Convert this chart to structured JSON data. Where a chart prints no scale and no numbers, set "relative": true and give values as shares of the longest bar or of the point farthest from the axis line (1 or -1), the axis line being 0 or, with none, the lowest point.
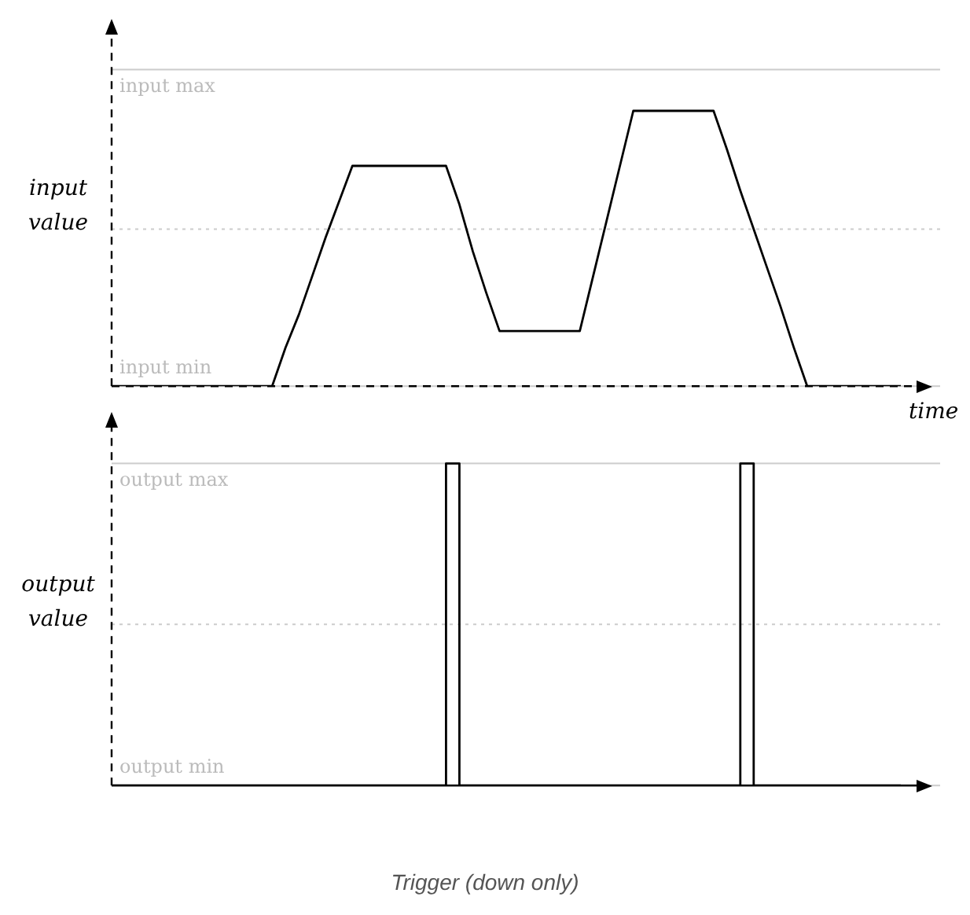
{
  "chart_data": [
    {
      "type": "line",
      "ylabel": "input value",
      "xlabel": "time",
      "relative": true,
      "categories": [
        null,
        null,
        null,
        null,
        null,
        null,
        null,
        null,
        null,
        null,
        null,
        null,
        null,
        null,
        null,
        null,
        null,
        null,
        null,
        null,
        null,
        null,
        null,
        null,
        null,
        null,
        null,
        null,
        null,
        null,
        null,
        null,
        null,
        null,
        null,
        null,
        null,
        null,
        null,
        null,
        null,
        null,
        null,
        null,
        null,
        null,
        null,
        null,
        null,
        null,
        null,
        null,
        null,
        null,
        null,
        null,
        null,
        null,
        null,
        null
      ],
      "series": [
        {
          "color": "#000000",
          "values": [
            0,
            0,
            0,
            0,
            0,
            0,
            0,
            0,
            0,
            0,
            0,
            0,
            0,
            0.14,
            0.26,
            0.4,
            0.54,
            0.67,
            0.8,
            0.8,
            0.8,
            0.8,
            0.8,
            0.8,
            0.8,
            0.8,
            0.66,
            0.49,
            0.34,
            0.2,
            0.2,
            0.2,
            0.2,
            0.2,
            0.2,
            0.2,
            0.4,
            0.6,
            0.8,
            1,
            1,
            1,
            1,
            1,
            1,
            1,
            0.86,
            0.71,
            0.57,
            0.43,
            0.29,
            0.14,
            0,
            0,
            0,
            0,
            0,
            0,
            0,
            0
          ]
        }
      ],
      "ref_lines": [
        {
          "axis": "y",
          "value": 1.15,
          "label": "input max",
          "color": "#cccccc",
          "line_style": "solid"
        },
        {
          "axis": "y",
          "value": 0.57,
          "label": null,
          "color": "#cccccc",
          "line_style": "dotted"
        },
        {
          "axis": "y",
          "value": 0,
          "label": "input min",
          "color": "#cccccc",
          "line_style": "solid"
        }
      ],
      "legend": false,
      "marker": "none",
      "line_style": "solid"
    },
    {
      "type": "step",
      "ylabel": "output value",
      "relative": true,
      "categories": [
        null,
        null,
        null,
        null,
        null,
        null,
        null,
        null,
        null,
        null,
        null,
        null,
        null,
        null,
        null,
        null,
        null,
        null,
        null,
        null,
        null,
        null,
        null,
        null,
        null,
        null,
        null,
        null,
        null,
        null,
        null,
        null,
        null,
        null,
        null,
        null,
        null,
        null,
        null,
        null,
        null,
        null,
        null,
        null,
        null,
        null,
        null,
        null,
        null,
        null,
        null,
        null,
        null,
        null,
        null,
        null,
        null,
        null,
        null,
        null
      ],
      "series": [
        {
          "color": "#000000",
          "values": [
            0,
            0,
            0,
            0,
            0,
            0,
            0,
            0,
            0,
            0,
            0,
            0,
            0,
            0,
            0,
            0,
            0,
            0,
            0,
            0,
            0,
            0,
            0,
            0,
            0,
            0,
            1,
            0,
            0,
            0,
            0,
            0,
            0,
            0,
            0,
            0,
            0,
            0,
            0,
            0,
            0,
            0,
            0,
            0,
            0,
            0,
            0,
            0,
            1,
            0,
            0,
            0,
            0,
            0,
            0,
            0,
            0,
            0,
            0,
            0
          ]
        }
      ],
      "ref_lines": [
        {
          "axis": "y",
          "value": 1,
          "label": "output max",
          "color": "#cccccc",
          "line_style": "solid"
        },
        {
          "axis": "y",
          "value": 0.5,
          "label": null,
          "color": "#cccccc",
          "line_style": "dotted"
        },
        {
          "axis": "y",
          "value": 0,
          "label": "output min",
          "color": "#cccccc",
          "line_style": "solid"
        }
      ],
      "legend": false,
      "marker": "none",
      "line_style": "solid",
      "annotations": [
        "Trigger (down only)"
      ]
    }
  ]
}
